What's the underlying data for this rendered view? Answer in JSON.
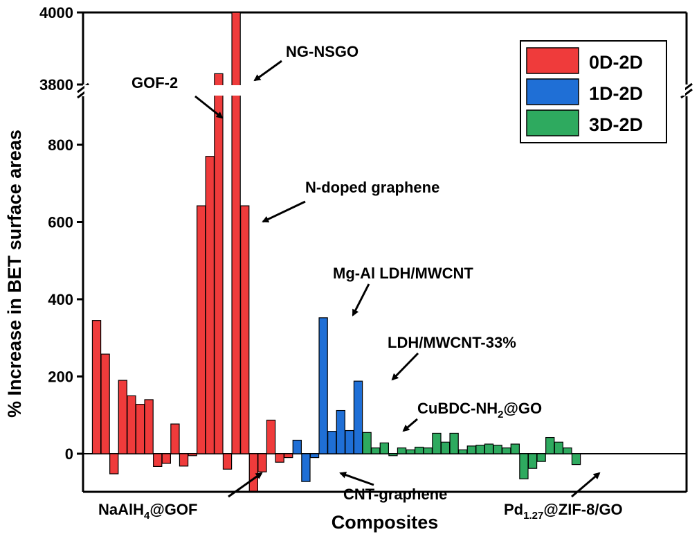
{
  "chart_data": {
    "type": "bar",
    "xlabel": "Composites",
    "ylabel": "% Increase in BET surface areas",
    "ylim_lower": [
      -100,
      900
    ],
    "ylim_upper": [
      3800,
      4000
    ],
    "axis_break": [
      900,
      3800
    ],
    "yticks": [
      0,
      200,
      400,
      600,
      800,
      3800,
      4000
    ],
    "ytick_labels": [
      "0",
      "200",
      "400",
      "600",
      "800",
      "3800",
      "4000"
    ],
    "legend_position": "top-right",
    "series": [
      {
        "name": "0D-2D",
        "color": "#ef3b3b",
        "values": [
          345,
          258,
          -52,
          190,
          150,
          128,
          140,
          -33,
          -25,
          77,
          -32,
          -5,
          642,
          770,
          3830,
          -40,
          4000,
          642,
          -97,
          -47,
          87,
          -22,
          -10
        ]
      },
      {
        "name": "1D-2D",
        "color": "#1f6fd6",
        "values": [
          35,
          -72,
          -10,
          352,
          58,
          112,
          60,
          188
        ]
      },
      {
        "name": "3D-2D",
        "color": "#2eaa5f",
        "values": [
          55,
          15,
          28,
          -5,
          15,
          10,
          17,
          15,
          53,
          30,
          53,
          10,
          20,
          22,
          25,
          22,
          15,
          25,
          -65,
          -38,
          -20,
          42,
          30,
          15,
          -28
        ]
      }
    ],
    "annotations": [
      {
        "text": "GOF-2"
      },
      {
        "text": "NG-NSGO"
      },
      {
        "text": "N-doped graphene"
      },
      {
        "text": "Mg-Al LDH/MWCNT"
      },
      {
        "text": "LDH/MWCNT-33%"
      },
      {
        "text": "CuBDC-NH",
        "sub": "2",
        "tail": "@GO"
      },
      {
        "text": "NaAlH",
        "sub": "4",
        "tail": "@GOF"
      },
      {
        "text": "CNT-graphene"
      },
      {
        "text": "Pd",
        "sub": "1.27",
        "tail": "@ZIF-8/GO"
      }
    ]
  }
}
